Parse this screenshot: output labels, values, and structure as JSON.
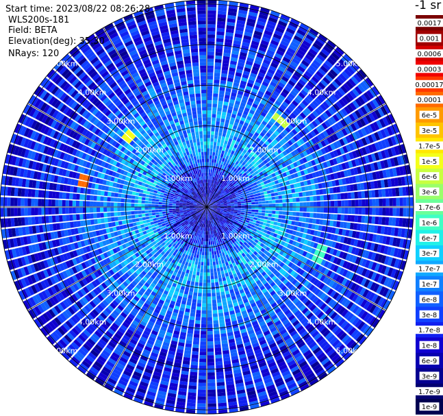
{
  "header": {
    "start_time": "Start time: 2023/08/22 08:26:28",
    "instrument": "WLS200s-181",
    "field": "Field: BETA",
    "elevation": "Elevation(deg): 35.30",
    "nrays": "NRays: 120"
  },
  "colorbar": {
    "unit": "-1 sr",
    "tick_labels": [
      "0.0017",
      "0.001",
      "0.0006",
      "0.0003",
      "0.00017",
      "0.0001",
      "6e-5",
      "3e-5",
      "1.7e-5",
      "1e-5",
      "6e-6",
      "3e-6",
      "1.7e-6",
      "1e-6",
      "6e-7",
      "3e-7",
      "1.7e-7",
      "1e-7",
      "6e-8",
      "3e-8",
      "1.7e-8",
      "1e-8",
      "6e-9",
      "3e-9",
      "1.7e-9",
      "1e-9"
    ],
    "colors": [
      "#7a0000",
      "#a00000",
      "#d40000",
      "#f00000",
      "#ff3800",
      "#ff6a00",
      "#ff9a00",
      "#ffc400",
      "#ffe800",
      "#f4ff1a",
      "#c8ff40",
      "#9aff6a",
      "#6aff9a",
      "#40ffc4",
      "#20f0e8",
      "#10d0ff",
      "#10a8ff",
      "#1080ff",
      "#1060ff",
      "#1040ff",
      "#1020f0",
      "#1000d0",
      "#0800b0",
      "#050090",
      "#030070",
      "#000050"
    ]
  },
  "ring_labels": [
    "1.00km",
    "2.00km",
    "3.00km",
    "4.00km",
    "5.00km"
  ],
  "chart_data": {
    "type": "heatmap",
    "projection": "polar (PPI scan)",
    "field": "BETA",
    "elevation_deg": 35.3,
    "n_rays": 120,
    "range_rings_km": [
      1,
      2,
      3,
      4,
      5
    ],
    "spokes_deg": [
      0,
      30,
      60,
      90,
      120,
      150,
      180,
      210,
      240,
      270,
      300,
      330
    ],
    "max_range_km": 5.1,
    "value_scale": "log",
    "value_range": [
      1e-09,
      0.0017
    ],
    "dominant_value_by_range_km": [
      {
        "range_km": 0.5,
        "value": 1e-08
      },
      {
        "range_km": 1.5,
        "value": 1.7e-07
      },
      {
        "range_km": 2.5,
        "value": 1e-07
      },
      {
        "range_km": 3.5,
        "value": 3e-08
      },
      {
        "range_km": 4.5,
        "value": 1.7e-08
      }
    ],
    "hotspots": [
      {
        "azimuth_deg": 282,
        "range_km": 3.1,
        "value": 0.0001
      },
      {
        "azimuth_deg": 312,
        "range_km": 2.6,
        "value": 1e-05
      },
      {
        "azimuth_deg": 40,
        "range_km": 2.8,
        "value": 6e-06
      },
      {
        "azimuth_deg": 112,
        "range_km": 3.0,
        "value": 1e-06
      }
    ]
  }
}
